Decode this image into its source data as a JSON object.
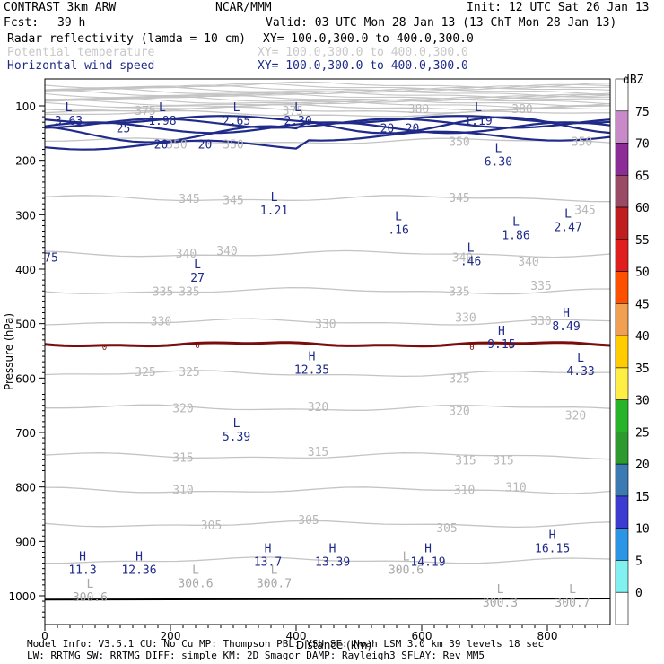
{
  "header": {
    "title": "CONTRAST  3km ARW",
    "org": "NCAR/MMM",
    "init": "Init: 12 UTC Sat 26 Jan 13",
    "fcst_label": "Fcst:",
    "fcst_value": "39 h",
    "valid": "Valid: 03 UTC Mon 28 Jan 13 (13 ChT Mon 28 Jan 13)",
    "fields": [
      {
        "name": "Radar reflectivity (lamda = 10 cm)",
        "xy": "XY= 100.0,300.0 to 400.0,300.0",
        "color": "#000000"
      },
      {
        "name": "Potential temperature",
        "xy": "XY= 100.0,300.0 to 400.0,300.0",
        "color": "#c8c8c8"
      },
      {
        "name": "Horizontal wind speed",
        "xy": "XY= 100.0,300.0 to 400.0,300.0",
        "color": "#1f2a8a"
      }
    ]
  },
  "footer": {
    "line1": "Model Info: V3.5.1    CU: No Cu     MP: Thompson    PBL: YSU       SF: Noah LSM     3.0 km   39 levels   18 sec",
    "line2": "   LW: RRTMG   SW: RRTMG   DIFF: simple KM: 2D Smagor DAMP: Rayleigh3   SFLAY: Rev MM5"
  },
  "chart_data": {
    "type": "cross-section contour",
    "xlabel": "Distance (km)",
    "ylabel": "Pressure (hPa)",
    "xlim": [
      0,
      900
    ],
    "ylim": [
      1050,
      60
    ],
    "x_ticks": [
      "0",
      "200",
      "400",
      "600",
      "800"
    ],
    "x_tick_values": [
      0,
      200,
      400,
      600,
      800
    ],
    "y_ticks": [
      "100",
      "200",
      "300",
      "400",
      "500",
      "600",
      "700",
      "800",
      "900",
      "1000"
    ],
    "y_tick_values": [
      100,
      200,
      300,
      400,
      500,
      600,
      700,
      800,
      900,
      1000
    ],
    "colorbar": {
      "unit": "dBZ",
      "levels": [
        "75",
        "70",
        "65",
        "60",
        "55",
        "50",
        "45",
        "40",
        "35",
        "30",
        "25",
        "20",
        "15",
        "10",
        "5",
        "0"
      ],
      "colors": [
        "#ffffff",
        "#c88ac8",
        "#8c2c96",
        "#9a4a64",
        "#c01e1e",
        "#e01e1e",
        "#ff5000",
        "#f0a050",
        "#ffcc00",
        "#ffee44",
        "#28b428",
        "#2c9a2c",
        "#3c7ab4",
        "#3c3cd2",
        "#2c96e6",
        "#80f0f0",
        "#ffffff"
      ]
    },
    "theta_contour_labels": [
      {
        "text": "380",
        "x": 595,
        "p": 105
      },
      {
        "text": "380",
        "x": 760,
        "p": 105
      },
      {
        "text": "375",
        "x": 160,
        "p": 108
      },
      {
        "text": "375",
        "x": 395,
        "p": 108
      },
      {
        "text": "350",
        "x": 300,
        "p": 170
      },
      {
        "text": "350",
        "x": 660,
        "p": 165
      },
      {
        "text": "350",
        "x": 855,
        "p": 165
      },
      {
        "text": "350",
        "x": 210,
        "p": 170
      },
      {
        "text": "345",
        "x": 230,
        "p": 270
      },
      {
        "text": "345",
        "x": 300,
        "p": 272
      },
      {
        "text": "345",
        "x": 660,
        "p": 268
      },
      {
        "text": "345",
        "x": 860,
        "p": 290
      },
      {
        "text": "340",
        "x": 225,
        "p": 370
      },
      {
        "text": "340",
        "x": 290,
        "p": 365
      },
      {
        "text": "340",
        "x": 665,
        "p": 378
      },
      {
        "text": "340",
        "x": 770,
        "p": 385
      },
      {
        "text": "335",
        "x": 188,
        "p": 440
      },
      {
        "text": "335",
        "x": 230,
        "p": 440
      },
      {
        "text": "335",
        "x": 660,
        "p": 440
      },
      {
        "text": "335",
        "x": 790,
        "p": 430
      },
      {
        "text": "330",
        "x": 185,
        "p": 495
      },
      {
        "text": "330",
        "x": 447,
        "p": 500
      },
      {
        "text": "330",
        "x": 670,
        "p": 488
      },
      {
        "text": "330",
        "x": 790,
        "p": 494
      },
      {
        "text": "325",
        "x": 160,
        "p": 588
      },
      {
        "text": "325",
        "x": 230,
        "p": 588
      },
      {
        "text": "325",
        "x": 660,
        "p": 600
      },
      {
        "text": "320",
        "x": 220,
        "p": 655
      },
      {
        "text": "320",
        "x": 435,
        "p": 652
      },
      {
        "text": "320",
        "x": 660,
        "p": 660
      },
      {
        "text": "320",
        "x": 845,
        "p": 668
      },
      {
        "text": "315",
        "x": 220,
        "p": 745
      },
      {
        "text": "315",
        "x": 435,
        "p": 735
      },
      {
        "text": "315",
        "x": 670,
        "p": 750
      },
      {
        "text": "315",
        "x": 730,
        "p": 750
      },
      {
        "text": "310",
        "x": 220,
        "p": 805
      },
      {
        "text": "310",
        "x": 668,
        "p": 805
      },
      {
        "text": "310",
        "x": 750,
        "p": 800
      },
      {
        "text": "305",
        "x": 265,
        "p": 870
      },
      {
        "text": "305",
        "x": 420,
        "p": 860
      },
      {
        "text": "305",
        "x": 640,
        "p": 875
      }
    ],
    "wind_contour_labels": [
      {
        "text": "25",
        "x": 125,
        "p": 140
      },
      {
        "text": "20",
        "x": 545,
        "p": 140
      },
      {
        "text": "20",
        "x": 585,
        "p": 140
      },
      {
        "text": "20",
        "x": 185,
        "p": 170
      },
      {
        "text": "20",
        "x": 255,
        "p": 170
      }
    ],
    "reflectivity_zero_labels": [
      {
        "text": "0",
        "x": 95,
        "p": 540
      },
      {
        "text": "0",
        "x": 243,
        "p": 537
      },
      {
        "text": "0",
        "x": 680,
        "p": 540
      },
      {
        "text": "0",
        "x": 742,
        "p": 538
      }
    ],
    "edge_labels": [
      {
        "text": "75",
        "x": 10,
        "p": 378
      }
    ],
    "extrema": [
      {
        "type": "L",
        "value": "3.63",
        "x": 38,
        "p": 110
      },
      {
        "type": "L",
        "value": "1.98",
        "x": 187,
        "p": 110
      },
      {
        "type": "L",
        "value": "2.65",
        "x": 305,
        "p": 110
      },
      {
        "type": "L",
        "value": "2.30",
        "x": 403,
        "p": 110
      },
      {
        "type": "L",
        "value": "1.19",
        "x": 690,
        "p": 110
      },
      {
        "type": "L",
        "value": "6.30",
        "x": 722,
        "p": 185
      },
      {
        "type": "L",
        "value": "1.21",
        "x": 365,
        "p": 275
      },
      {
        "type": "L",
        "value": ".16",
        "x": 563,
        "p": 310
      },
      {
        "type": "L",
        "value": "1.86",
        "x": 750,
        "p": 320
      },
      {
        "type": "L",
        "value": "2.47",
        "x": 833,
        "p": 305
      },
      {
        "type": "L",
        "value": ".46",
        "x": 678,
        "p": 368
      },
      {
        "type": "L",
        "value": "27",
        "x": 243,
        "p": 398
      },
      {
        "type": "H",
        "value": "8.49",
        "x": 830,
        "p": 487
      },
      {
        "type": "H",
        "value": "9.15",
        "x": 727,
        "p": 520
      },
      {
        "type": "H",
        "value": "12.35",
        "x": 425,
        "p": 567
      },
      {
        "type": "L",
        "value": "4.33",
        "x": 853,
        "p": 570
      },
      {
        "type": "L",
        "value": "5.39",
        "x": 305,
        "p": 690
      },
      {
        "type": "H",
        "value": "16.15",
        "x": 808,
        "p": 895
      },
      {
        "type": "H",
        "value": "11.3",
        "x": 60,
        "p": 935
      },
      {
        "type": "H",
        "value": "12.36",
        "x": 150,
        "p": 935
      },
      {
        "type": "H",
        "value": "13.7",
        "x": 355,
        "p": 920
      },
      {
        "type": "H",
        "value": "13.39",
        "x": 458,
        "p": 920
      },
      {
        "type": "H",
        "value": "14.19",
        "x": 610,
        "p": 920
      },
      {
        "type": "L",
        "value": "300.6",
        "x": 575,
        "p": 935
      },
      {
        "type": "L",
        "value": "300.6",
        "x": 240,
        "p": 960
      },
      {
        "type": "L",
        "value": "300.7",
        "x": 365,
        "p": 960
      },
      {
        "type": "L",
        "value": "300.6",
        "x": 72,
        "p": 985
      },
      {
        "type": "L",
        "value": "300.3",
        "x": 725,
        "p": 995
      },
      {
        "type": "L",
        "value": "300.7",
        "x": 840,
        "p": 995
      }
    ]
  }
}
